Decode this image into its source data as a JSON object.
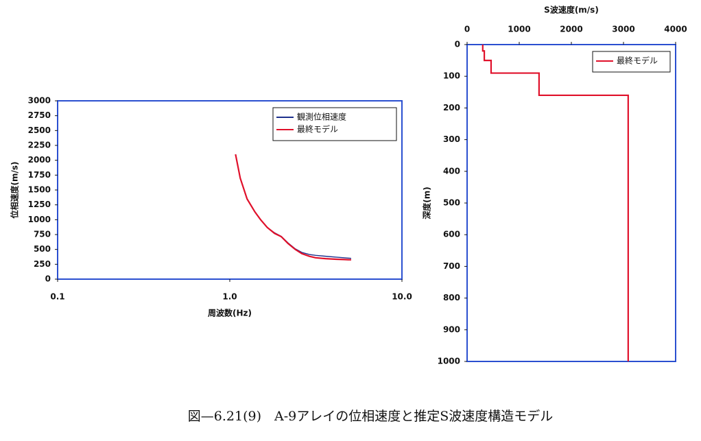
{
  "chart_data": [
    {
      "type": "line",
      "xlabel": "周波数(Hz)",
      "ylabel": "位相速度(m/s)",
      "xscale": "log",
      "xlim": [
        0.1,
        10
      ],
      "xticks": [
        0.1,
        {
          "value": 1,
          "label": "1.0"
        },
        {
          "value": 10,
          "label": "10.0"
        }
      ],
      "ylim": [
        0,
        3000
      ],
      "yticks": [
        0,
        250,
        500,
        750,
        1000,
        1250,
        1500,
        1750,
        2000,
        2250,
        2500,
        2750,
        3000
      ],
      "grid": false,
      "legend": "upper right",
      "frame_color": "#2a4fd0",
      "series": [
        {
          "name": "観測位相速度",
          "color": "#1c2f8c",
          "x": [
            1.08,
            1.15,
            1.26,
            1.4,
            1.51,
            1.65,
            1.82,
            1.99,
            2.18,
            2.4,
            2.62,
            2.9,
            3.15,
            3.6,
            4.15,
            4.6,
            5.07
          ],
          "values": [
            2100,
            1700,
            1350,
            1130,
            1000,
            870,
            780,
            720,
            610,
            510,
            450,
            415,
            400,
            385,
            370,
            360,
            350
          ]
        },
        {
          "name": "最終モデル",
          "color": "#e0102a",
          "x": [
            1.08,
            1.15,
            1.26,
            1.4,
            1.51,
            1.65,
            1.82,
            1.99,
            2.18,
            2.4,
            2.62,
            2.9,
            3.15,
            3.6,
            4.15,
            4.6,
            5.07
          ],
          "values": [
            2100,
            1700,
            1350,
            1130,
            1000,
            870,
            770,
            715,
            600,
            500,
            430,
            385,
            360,
            345,
            335,
            330,
            325
          ]
        }
      ]
    },
    {
      "type": "line",
      "xlabel": "S波速度(m/s)",
      "ylabel": "深度(m)",
      "xaxis_position": "top",
      "y_inverted": true,
      "xlim": [
        0,
        4000
      ],
      "xticks": [
        0,
        1000,
        2000,
        3000,
        4000
      ],
      "ylim": [
        0,
        1000
      ],
      "yticks": [
        0,
        100,
        200,
        300,
        400,
        500,
        600,
        700,
        800,
        900,
        1000
      ],
      "grid": false,
      "legend": "upper right",
      "frame_color": "#2a4fd0",
      "series": [
        {
          "name": "最終モデル",
          "color": "#e0102a",
          "x": [
            300,
            300,
            330,
            330,
            460,
            460,
            1380,
            1380,
            3090,
            3090
          ],
          "values": [
            0,
            20,
            20,
            50,
            50,
            90,
            90,
            160,
            160,
            1000
          ]
        }
      ]
    }
  ],
  "caption": "図—6.21(9)　A-9アレイの位相速度と推定S波速度構造モデル"
}
